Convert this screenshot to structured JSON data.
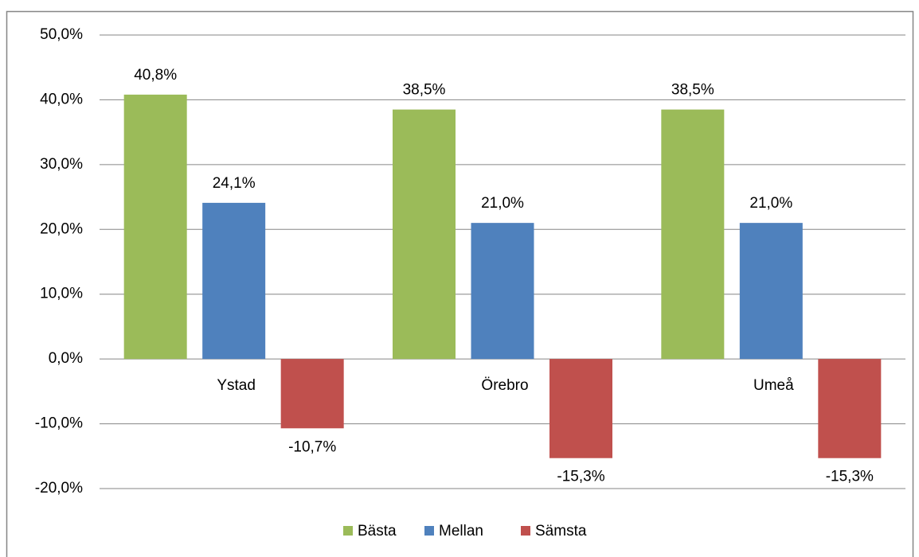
{
  "chart_data": {
    "type": "bar",
    "categories": [
      "Ystad",
      "Örebro",
      "Umeå"
    ],
    "series": [
      {
        "name": "Bästa",
        "color": "#9bbb59",
        "values": [
          40.8,
          38.5,
          38.5
        ],
        "value_labels": [
          "40,8%",
          "38,5%",
          "38,5%"
        ]
      },
      {
        "name": "Mellan",
        "color": "#4f81bd",
        "values": [
          24.1,
          21.0,
          21.0
        ],
        "value_labels": [
          "24,1%",
          "21,0%",
          "21,0%"
        ]
      },
      {
        "name": "Sämsta",
        "color": "#c0504d",
        "values": [
          -10.7,
          -15.3,
          -15.3
        ],
        "value_labels": [
          "-10,7%",
          "-15,3%",
          "-15,3%"
        ]
      }
    ],
    "ylim": [
      -20,
      50
    ],
    "yticks": [
      {
        "value": -20,
        "label": "-20,0%"
      },
      {
        "value": -10,
        "label": "-10,0%"
      },
      {
        "value": 0,
        "label": "0,0%"
      },
      {
        "value": 10,
        "label": "10,0%"
      },
      {
        "value": 20,
        "label": "20,0%"
      },
      {
        "value": 30,
        "label": "30,0%"
      },
      {
        "value": 40,
        "label": "40,0%"
      },
      {
        "value": 50,
        "label": "50,0%"
      }
    ],
    "grid": true,
    "legend": "bottom"
  }
}
